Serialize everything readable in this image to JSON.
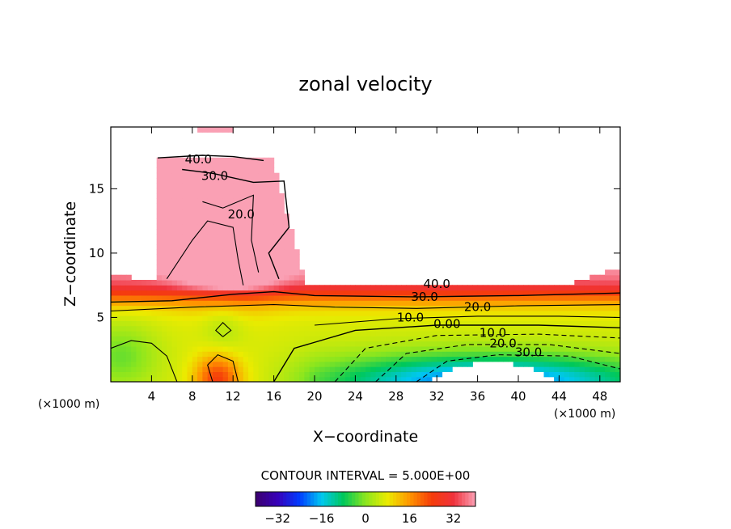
{
  "chart_data": {
    "type": "heatmap",
    "subtype": "filled-contour",
    "title": "zonal velocity",
    "xlabel": "X−coordinate",
    "ylabel": "Z−coordinate",
    "x_unit_label": "(×1000 m)",
    "x_unit_label_right": "(×1000 m)",
    "xlim": [
      0,
      50
    ],
    "ylim": [
      0,
      19.8
    ],
    "x_ticks": [
      4,
      8,
      12,
      16,
      20,
      24,
      28,
      32,
      36,
      40,
      44,
      48
    ],
    "y_ticks": [
      5,
      10,
      15
    ],
    "x_tick_labels": [
      "4",
      "8",
      "12",
      "16",
      "20",
      "24",
      "28",
      "32",
      "36",
      "40",
      "44",
      "48"
    ],
    "y_tick_labels": [
      "5",
      "10",
      "15"
    ],
    "contour_interval_label": "CONTOUR INTERVAL = 5.000E+00",
    "contour_interval": 5.0,
    "value_range": [
      -40,
      40
    ],
    "contour_labels": [
      {
        "text": "40.0",
        "x": 8.6,
        "z": 17.3
      },
      {
        "text": "30.0",
        "x": 10.2,
        "z": 16.0
      },
      {
        "text": "20.0",
        "x": 12.8,
        "z": 13.0
      },
      {
        "text": "40.0",
        "x": 32.0,
        "z": 7.6
      },
      {
        "text": "30.0",
        "x": 30.8,
        "z": 6.6
      },
      {
        "text": "20.0",
        "x": 36.0,
        "z": 5.8
      },
      {
        "text": "10.0",
        "x": 29.4,
        "z": 5.0
      },
      {
        "text": "0.00",
        "x": 33.0,
        "z": 4.5
      },
      {
        "text": "10.0",
        "x": 37.5,
        "z": 3.8
      },
      {
        "text": "20.0",
        "x": 38.5,
        "z": 3.0
      },
      {
        "text": "30.0",
        "x": 41.0,
        "z": 2.3
      }
    ],
    "colorbar": {
      "ticks": [
        -32,
        -16,
        0,
        16,
        32
      ],
      "tick_labels": [
        "−32",
        "−16",
        "0",
        "16",
        "32"
      ],
      "range": [
        -40,
        40
      ]
    },
    "grid": false
  }
}
